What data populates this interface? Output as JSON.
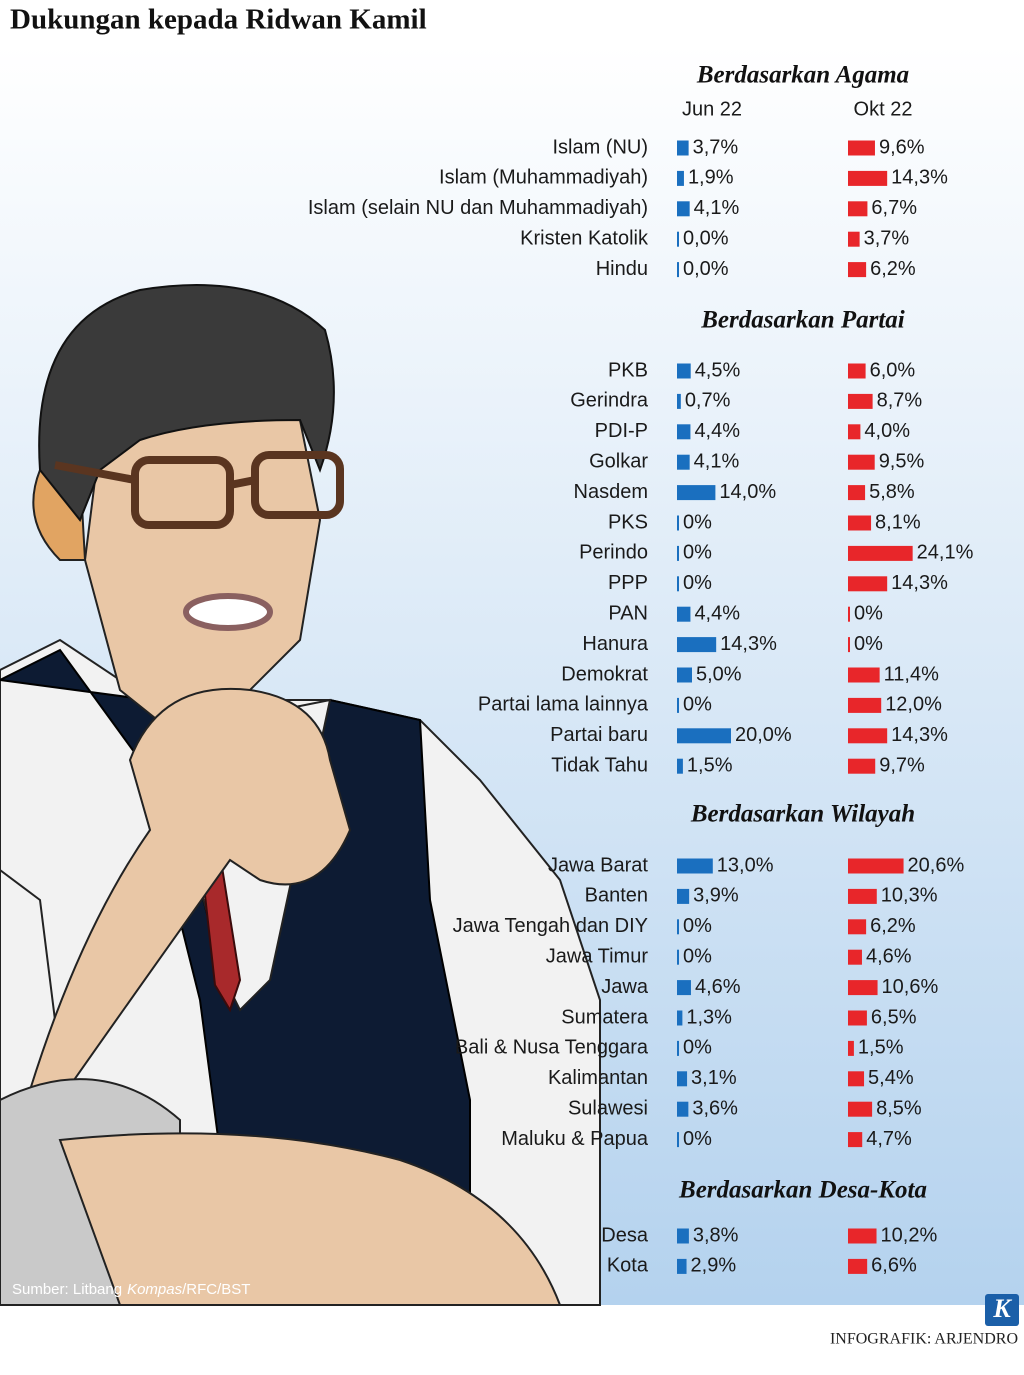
{
  "title": "Dukungan kepada Ridwan Kamil",
  "chart_data": [
    {
      "type": "bar",
      "title": "Berdasarkan Agama",
      "categories": [
        "Islam (NU)",
        "Islam (Muhammadiyah)",
        "Islam (selain NU dan Muhammadiyah)",
        "Kristen Katolik",
        "Hindu"
      ],
      "series": [
        {
          "name": "Jun 22",
          "color": "#1a6fbf",
          "values": [
            3.7,
            1.9,
            4.1,
            0,
            0
          ],
          "value_labels": [
            "3,7%",
            "1,9%",
            "4,1%",
            "0,0%",
            "0,0%"
          ]
        },
        {
          "name": "Okt 22",
          "color": "#e8262a",
          "values": [
            9.6,
            14.3,
            6.7,
            3.7,
            6.2
          ],
          "value_labels": [
            "9,6%",
            "14,3%",
            "6,7%",
            "3,7%",
            "6,2%"
          ]
        }
      ]
    },
    {
      "type": "bar",
      "title": "Berdasarkan Partai",
      "categories": [
        "PKB",
        "Gerindra",
        "PDI-P",
        "Golkar",
        "Nasdem",
        "PKS",
        "Perindo",
        "PPP",
        "PAN",
        "Hanura",
        "Demokrat",
        "Partai lama lainnya",
        "Partai baru",
        "Tidak Tahu"
      ],
      "series": [
        {
          "color": "#1a6fbf",
          "values": [
            4.5,
            0.7,
            4.4,
            4.1,
            14.0,
            0,
            0,
            0,
            4.4,
            14.3,
            5.0,
            0,
            20.0,
            1.5
          ],
          "value_labels": [
            "4,5%",
            "0,7%",
            "4,4%",
            "4,1%",
            "14,0%",
            "0%",
            "0%",
            "0%",
            "4,4%",
            "14,3%",
            "5,0%",
            "0%",
            "20,0%",
            "1,5%"
          ]
        },
        {
          "color": "#e8262a",
          "values": [
            6.0,
            8.7,
            4.0,
            9.5,
            5.8,
            8.1,
            24.1,
            14.3,
            0,
            0,
            11.4,
            12.0,
            14.3,
            9.7
          ],
          "value_labels": [
            "6,0%",
            "8,7%",
            "4,0%",
            "9,5%",
            "5,8%",
            "8,1%",
            "24,1%",
            "14,3%",
            "0%",
            "0%",
            "11,4%",
            "12,0%",
            "14,3%",
            "9,7%"
          ]
        }
      ]
    },
    {
      "type": "bar",
      "title": "Berdasarkan Wilayah",
      "categories": [
        "Jawa Barat",
        "Banten",
        "Jawa Tengah dan DIY",
        "Jawa Timur",
        "Jawa",
        "Sumatera",
        "Bali & Nusa Tenggara",
        "Kalimantan",
        "Sulawesi",
        "Maluku & Papua"
      ],
      "series": [
        {
          "color": "#1a6fbf",
          "values": [
            13.0,
            3.9,
            0,
            0,
            4.6,
            1.3,
            0,
            3.1,
            3.6,
            0
          ],
          "value_labels": [
            "13,0%",
            "3,9%",
            "0%",
            "0%",
            "4,6%",
            "1,3%",
            "0%",
            "3,1%",
            "3,6%",
            "0%"
          ]
        },
        {
          "color": "#e8262a",
          "values": [
            20.6,
            10.3,
            6.2,
            4.6,
            10.6,
            6.5,
            1.5,
            5.4,
            8.5,
            4.7
          ],
          "value_labels": [
            "20,6%",
            "10,3%",
            "6,2%",
            "4,6%",
            "10,6%",
            "6,5%",
            "1,5%",
            "5,4%",
            "8,5%",
            "4,7%"
          ]
        }
      ]
    },
    {
      "type": "bar",
      "title": "Berdasarkan Desa-Kota",
      "categories": [
        "Desa",
        "Kota"
      ],
      "series": [
        {
          "color": "#1a6fbf",
          "values": [
            3.8,
            2.9
          ],
          "value_labels": [
            "3,8%",
            "2,9%"
          ]
        },
        {
          "color": "#e8262a",
          "values": [
            10.2,
            6.6
          ],
          "value_labels": [
            "10,2%",
            "6,6%"
          ]
        }
      ]
    }
  ],
  "source_prefix": "Sumber: Litbang",
  "source_italic": "Kompas",
  "source_suffix": "/RFC/BST",
  "logo": "K",
  "credit": "INFOGRAFIK: ARJENDRO"
}
